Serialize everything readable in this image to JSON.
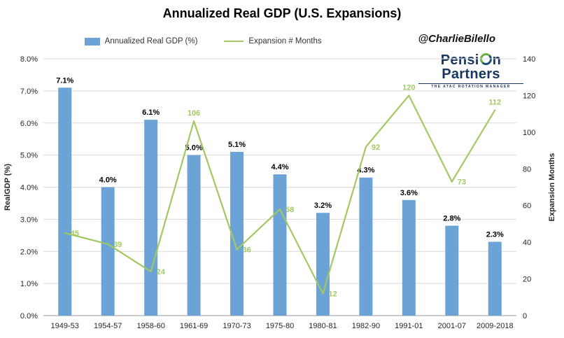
{
  "title": "Annualized Real GDP (U.S. Expansions)",
  "annotation": "@CharlieBilello",
  "brand": {
    "name_prefix": "Pensi",
    "name_suffix": "n Partners",
    "tagline": "THE ATAC ROTATION MANAGER"
  },
  "legend": [
    {
      "label": "Annualized Real GDP (%)",
      "type": "bar",
      "color": "#6BA3D6"
    },
    {
      "label": "Expansion # Months",
      "type": "line",
      "color": "#A2C862"
    }
  ],
  "chart_data": {
    "type": "bar+line",
    "title": "Annualized Real GDP (U.S. Expansions)",
    "categories": [
      "1949-53",
      "1954-57",
      "1958-60",
      "1961-69",
      "1970-73",
      "1975-80",
      "1980-81",
      "1982-90",
      "1991-01",
      "2001-07",
      "2009-2018"
    ],
    "series": [
      {
        "name": "Annualized Real GDP (%)",
        "type": "bar",
        "axis": "left",
        "color": "#6BA3D6",
        "values": [
          7.1,
          4.0,
          6.1,
          5.0,
          5.1,
          4.4,
          3.2,
          4.3,
          3.6,
          2.8,
          2.3
        ],
        "labels": [
          "7.1%",
          "4.0%",
          "6.1%",
          "5.0%",
          "5.1%",
          "4.4%",
          "3.2%",
          "4.3%",
          "3.6%",
          "2.8%",
          "2.3%"
        ]
      },
      {
        "name": "Expansion # Months",
        "type": "line",
        "axis": "right",
        "color": "#A2C862",
        "values": [
          45,
          39,
          24,
          106,
          36,
          58,
          12,
          92,
          120,
          73,
          112
        ],
        "labels": [
          "45",
          "39",
          "24",
          "106",
          "36",
          "58",
          "12",
          "92",
          "120",
          "73",
          "112"
        ],
        "label_positions": [
          "right",
          "right",
          "right",
          "above",
          "right",
          "right",
          "right",
          "right",
          "above",
          "right",
          "above"
        ]
      }
    ],
    "left_axis": {
      "title": "RealGDP (%)",
      "min": 0,
      "max": 8,
      "step": 1,
      "format": "percent1"
    },
    "right_axis": {
      "title": "Expansion Months",
      "min": 0,
      "max": 140,
      "step": 20,
      "format": "int"
    },
    "grid": true,
    "legend_position": "top"
  }
}
